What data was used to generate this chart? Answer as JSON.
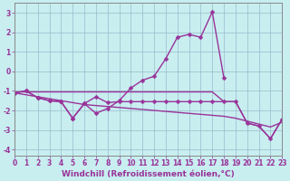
{
  "xlabel": "Windchill (Refroidissement éolien,°C)",
  "bg_color": "#c8eef0",
  "line_color": "#993399",
  "grid_color": "#99bbcc",
  "x": [
    0,
    1,
    2,
    3,
    4,
    5,
    6,
    7,
    8,
    9,
    10,
    11,
    12,
    13,
    14,
    15,
    16,
    17,
    18,
    19,
    20,
    21,
    22,
    23
  ],
  "line_main": [
    -1.1,
    -1.0,
    -1.35,
    -1.5,
    -1.55,
    -2.4,
    -1.65,
    -2.15,
    -1.9,
    -1.5,
    -0.85,
    -0.45,
    -0.25,
    0.65,
    1.75,
    1.9,
    1.75,
    3.05,
    -0.35,
    null,
    null,
    null,
    null,
    null
  ],
  "line_wavy": [
    -1.1,
    -1.0,
    -1.35,
    -1.5,
    -1.55,
    -2.4,
    -1.65,
    -1.3,
    -1.6,
    -1.55,
    -1.55,
    -1.55,
    -1.55,
    -1.55,
    -1.55,
    -1.55,
    -1.55,
    -1.55,
    -1.55,
    -1.55,
    -2.65,
    -2.8,
    -3.45,
    -2.45
  ],
  "line_flat": [
    -1.05,
    -1.05,
    -1.05,
    -1.05,
    -1.05,
    -1.05,
    -1.05,
    -1.05,
    -1.05,
    -1.05,
    -1.05,
    -1.05,
    -1.05,
    -1.05,
    -1.05,
    -1.05,
    -1.05,
    -1.05,
    -1.55,
    -1.55,
    -2.65,
    -2.8,
    -3.45,
    -2.45
  ],
  "line_trend": [
    -1.1,
    -1.2,
    -1.3,
    -1.4,
    -1.5,
    -1.6,
    -1.7,
    -1.75,
    -1.8,
    -1.85,
    -1.9,
    -1.95,
    -2.0,
    -2.05,
    -2.1,
    -2.15,
    -2.2,
    -2.25,
    -2.3,
    -2.4,
    -2.55,
    -2.7,
    -2.85,
    -2.6
  ],
  "ylim": [
    -4.3,
    3.5
  ],
  "xlim": [
    0,
    23
  ],
  "yticks": [
    -4,
    -3,
    -2,
    -1,
    0,
    1,
    2,
    3
  ],
  "xticks": [
    0,
    1,
    2,
    3,
    4,
    5,
    6,
    7,
    8,
    9,
    10,
    11,
    12,
    13,
    14,
    15,
    16,
    17,
    18,
    19,
    20,
    21,
    22,
    23
  ],
  "marker": "D",
  "markersize": 2.5,
  "linewidth": 1.0,
  "tick_fontsize": 5.5,
  "xlabel_fontsize": 6.5
}
